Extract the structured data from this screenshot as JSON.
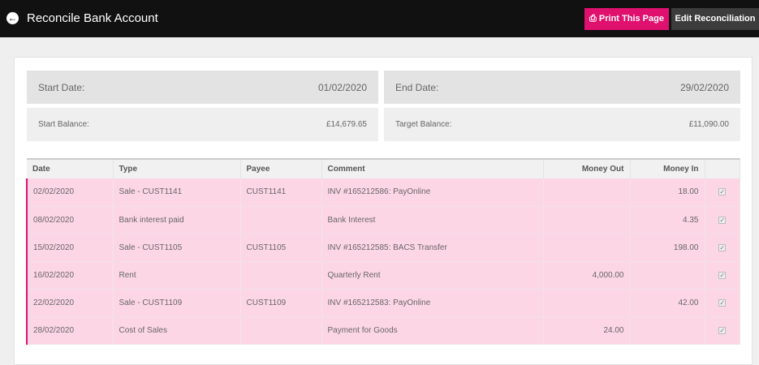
{
  "header": {
    "title": "Reconcile Bank Account",
    "print_label": "Print This Page",
    "edit_label": "Edit Reconciliation"
  },
  "info": {
    "start_date_label": "Start Date:",
    "start_date": "01/02/2020",
    "end_date_label": "End Date:",
    "end_date": "29/02/2020",
    "start_balance_label": "Start Balance:",
    "start_balance": "£14,679.65",
    "target_balance_label": "Target Balance:",
    "target_balance": "£11,090.00"
  },
  "table": {
    "columns": [
      "Date",
      "Type",
      "Payee",
      "Comment",
      "Money Out",
      "Money In"
    ],
    "rows": [
      {
        "date": "02/02/2020",
        "type": "Sale - CUST1141",
        "payee": "CUST1141",
        "comment": "INV #165212586: PayOnline",
        "out": "",
        "in": "18.00",
        "checked": true
      },
      {
        "date": "08/02/2020",
        "type": "Bank interest paid",
        "payee": "",
        "comment": "Bank Interest",
        "out": "",
        "in": "4.35",
        "checked": true
      },
      {
        "date": "15/02/2020",
        "type": "Sale - CUST1105",
        "payee": "CUST1105",
        "comment": "INV #165212585: BACS Transfer",
        "out": "",
        "in": "198.00",
        "checked": true
      },
      {
        "date": "16/02/2020",
        "type": "Rent",
        "payee": "",
        "comment": "Quarterly Rent",
        "out": "4,000.00",
        "in": "",
        "checked": true
      },
      {
        "date": "22/02/2020",
        "type": "Sale - CUST1109",
        "payee": "CUST1109",
        "comment": "INV #165212583: PayOnline",
        "out": "",
        "in": "42.00",
        "checked": true
      },
      {
        "date": "28/02/2020",
        "type": "Cost of Sales",
        "payee": "",
        "comment": "Payment for Goods",
        "out": "24.00",
        "in": "",
        "checked": true
      }
    ]
  },
  "colors": {
    "accent": "#e0106f",
    "row_bg": "#fdd6e6",
    "topbar": "#111111"
  }
}
